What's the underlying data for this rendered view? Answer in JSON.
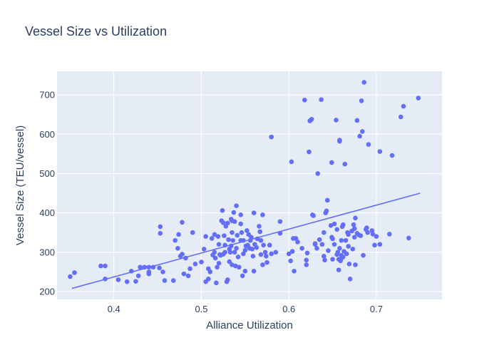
{
  "chart_data": {
    "type": "scatter",
    "title": "Vessel Size vs Utilization",
    "xlabel": "Alliance Utilization",
    "ylabel": "Vessel Size (TEU/vessel)",
    "xlim": [
      0.335,
      0.775
    ],
    "ylim": [
      180,
      760
    ],
    "xticks": [
      0.4,
      0.5,
      0.6,
      0.7
    ],
    "xtick_labels": [
      "0.4",
      "0.5",
      "0.6",
      "0.7"
    ],
    "yticks": [
      200,
      300,
      400,
      500,
      600,
      700
    ],
    "ytick_labels": [
      "200",
      "300",
      "400",
      "500",
      "600",
      "700"
    ],
    "grid": true,
    "legend": false,
    "colors": {
      "marker": "#636efa",
      "trend": "#636efa",
      "plot_bg": "#e5ecf6",
      "grid": "#ffffff"
    },
    "series": [
      {
        "mode": "markers",
        "points": [
          [
            0.35,
            238
          ],
          [
            0.355,
            248
          ],
          [
            0.385,
            265
          ],
          [
            0.39,
            265
          ],
          [
            0.39,
            232
          ],
          [
            0.405,
            230
          ],
          [
            0.415,
            225
          ],
          [
            0.42,
            252
          ],
          [
            0.425,
            226
          ],
          [
            0.428,
            240
          ],
          [
            0.43,
            262
          ],
          [
            0.435,
            262
          ],
          [
            0.44,
            245
          ],
          [
            0.44,
            250
          ],
          [
            0.44,
            262
          ],
          [
            0.445,
            262
          ],
          [
            0.452,
            260
          ],
          [
            0.453,
            365
          ],
          [
            0.453,
            348
          ],
          [
            0.456,
            250
          ],
          [
            0.458,
            228
          ],
          [
            0.468,
            228
          ],
          [
            0.47,
            330
          ],
          [
            0.473,
            310
          ],
          [
            0.474,
            345
          ],
          [
            0.476,
            290
          ],
          [
            0.478,
            295
          ],
          [
            0.478,
            376
          ],
          [
            0.48,
            245
          ],
          [
            0.482,
            285
          ],
          [
            0.485,
            240
          ],
          [
            0.487,
            258
          ],
          [
            0.49,
            350
          ],
          [
            0.493,
            270
          ],
          [
            0.5,
            275
          ],
          [
            0.503,
            308
          ],
          [
            0.505,
            340
          ],
          [
            0.505,
            225
          ],
          [
            0.508,
            258
          ],
          [
            0.508,
            232
          ],
          [
            0.51,
            250
          ],
          [
            0.512,
            335
          ],
          [
            0.513,
            293
          ],
          [
            0.515,
            300
          ],
          [
            0.515,
            345
          ],
          [
            0.516,
            285
          ],
          [
            0.517,
            222
          ],
          [
            0.518,
            262
          ],
          [
            0.519,
            340
          ],
          [
            0.52,
            272
          ],
          [
            0.52,
            320
          ],
          [
            0.522,
            292
          ],
          [
            0.523,
            380
          ],
          [
            0.524,
            406
          ],
          [
            0.525,
            375
          ],
          [
            0.525,
            295
          ],
          [
            0.526,
            342
          ],
          [
            0.527,
            300
          ],
          [
            0.528,
            366
          ],
          [
            0.529,
            225
          ],
          [
            0.53,
            230
          ],
          [
            0.53,
            374
          ],
          [
            0.531,
            332
          ],
          [
            0.532,
            308
          ],
          [
            0.532,
            276
          ],
          [
            0.533,
            300
          ],
          [
            0.534,
            384
          ],
          [
            0.535,
            380
          ],
          [
            0.535,
            350
          ],
          [
            0.535,
            268
          ],
          [
            0.536,
            330
          ],
          [
            0.537,
            401
          ],
          [
            0.538,
            378
          ],
          [
            0.538,
            300
          ],
          [
            0.539,
            265
          ],
          [
            0.54,
            418
          ],
          [
            0.54,
            310
          ],
          [
            0.541,
            343
          ],
          [
            0.542,
            288
          ],
          [
            0.543,
            262
          ],
          [
            0.545,
            395
          ],
          [
            0.545,
            372
          ],
          [
            0.546,
            350
          ],
          [
            0.547,
            240
          ],
          [
            0.548,
            330
          ],
          [
            0.548,
            296
          ],
          [
            0.55,
            305
          ],
          [
            0.55,
            252
          ],
          [
            0.551,
            316
          ],
          [
            0.552,
            355
          ],
          [
            0.553,
            318
          ],
          [
            0.554,
            345
          ],
          [
            0.555,
            310
          ],
          [
            0.556,
            330
          ],
          [
            0.557,
            338
          ],
          [
            0.558,
            308
          ],
          [
            0.559,
            290
          ],
          [
            0.56,
            252
          ],
          [
            0.56,
            400
          ],
          [
            0.561,
            320
          ],
          [
            0.563,
            312
          ],
          [
            0.564,
            334
          ],
          [
            0.566,
            366
          ],
          [
            0.567,
            352
          ],
          [
            0.568,
            330
          ],
          [
            0.568,
            294
          ],
          [
            0.57,
            395
          ],
          [
            0.57,
            268
          ],
          [
            0.571,
            318
          ],
          [
            0.573,
            300
          ],
          [
            0.574,
            290
          ],
          [
            0.575,
            274
          ],
          [
            0.578,
            318
          ],
          [
            0.58,
            593
          ],
          [
            0.58,
            296
          ],
          [
            0.585,
            300
          ],
          [
            0.59,
            348
          ],
          [
            0.59,
            378
          ],
          [
            0.6,
            296
          ],
          [
            0.602,
            278
          ],
          [
            0.603,
            530
          ],
          [
            0.604,
            302
          ],
          [
            0.605,
            335
          ],
          [
            0.606,
            252
          ],
          [
            0.608,
            335
          ],
          [
            0.61,
            326
          ],
          [
            0.615,
            310
          ],
          [
            0.618,
            687
          ],
          [
            0.62,
            280
          ],
          [
            0.62,
            268
          ],
          [
            0.621,
            298
          ],
          [
            0.623,
            555
          ],
          [
            0.624,
            634
          ],
          [
            0.626,
            638
          ],
          [
            0.627,
            395
          ],
          [
            0.628,
            393
          ],
          [
            0.63,
            322
          ],
          [
            0.63,
            320
          ],
          [
            0.632,
            310
          ],
          [
            0.633,
            500
          ],
          [
            0.635,
            332
          ],
          [
            0.637,
            688
          ],
          [
            0.638,
            320
          ],
          [
            0.64,
            350
          ],
          [
            0.64,
            290
          ],
          [
            0.641,
            280
          ],
          [
            0.642,
            400
          ],
          [
            0.643,
            405
          ],
          [
            0.644,
            432
          ],
          [
            0.645,
            304
          ],
          [
            0.648,
            368
          ],
          [
            0.649,
            528
          ],
          [
            0.649,
            338
          ],
          [
            0.65,
            334
          ],
          [
            0.65,
            282
          ],
          [
            0.652,
            372
          ],
          [
            0.652,
            320
          ],
          [
            0.654,
            636
          ],
          [
            0.655,
            358
          ],
          [
            0.656,
            300
          ],
          [
            0.657,
            255
          ],
          [
            0.658,
            585
          ],
          [
            0.658,
            582
          ],
          [
            0.658,
            310
          ],
          [
            0.659,
            278
          ],
          [
            0.66,
            330
          ],
          [
            0.66,
            292
          ],
          [
            0.661,
            365
          ],
          [
            0.662,
            370
          ],
          [
            0.663,
            302
          ],
          [
            0.664,
            524
          ],
          [
            0.665,
            330
          ],
          [
            0.666,
            296
          ],
          [
            0.667,
            350
          ],
          [
            0.668,
            345
          ],
          [
            0.668,
            315
          ],
          [
            0.669,
            270
          ],
          [
            0.67,
            232
          ],
          [
            0.672,
            354
          ],
          [
            0.673,
            308
          ],
          [
            0.674,
            370
          ],
          [
            0.675,
            360
          ],
          [
            0.675,
            338
          ],
          [
            0.676,
            387
          ],
          [
            0.676,
            268
          ],
          [
            0.678,
            635
          ],
          [
            0.678,
            348
          ],
          [
            0.68,
            344
          ],
          [
            0.681,
            595
          ],
          [
            0.682,
            342
          ],
          [
            0.683,
            685
          ],
          [
            0.684,
            607
          ],
          [
            0.685,
            292
          ],
          [
            0.686,
            732
          ],
          [
            0.688,
            358
          ],
          [
            0.689,
            362
          ],
          [
            0.69,
            350
          ],
          [
            0.691,
            574
          ],
          [
            0.695,
            355
          ],
          [
            0.696,
            346
          ],
          [
            0.698,
            318
          ],
          [
            0.7,
            340
          ],
          [
            0.704,
            556
          ],
          [
            0.704,
            320
          ],
          [
            0.715,
            346
          ],
          [
            0.718,
            546
          ],
          [
            0.728,
            644
          ],
          [
            0.731,
            671
          ],
          [
            0.737,
            336
          ],
          [
            0.748,
            692
          ],
          [
            0.655,
            294
          ],
          [
            0.662,
            288
          ],
          [
            0.66,
            284
          ],
          [
            0.657,
            282
          ],
          [
            0.534,
            316
          ],
          [
            0.545,
            330
          ],
          [
            0.527,
            318
          ],
          [
            0.521,
            294
          ]
        ]
      },
      {
        "mode": "lines",
        "points": [
          [
            0.352,
            208
          ],
          [
            0.75,
            450
          ]
        ]
      }
    ]
  }
}
